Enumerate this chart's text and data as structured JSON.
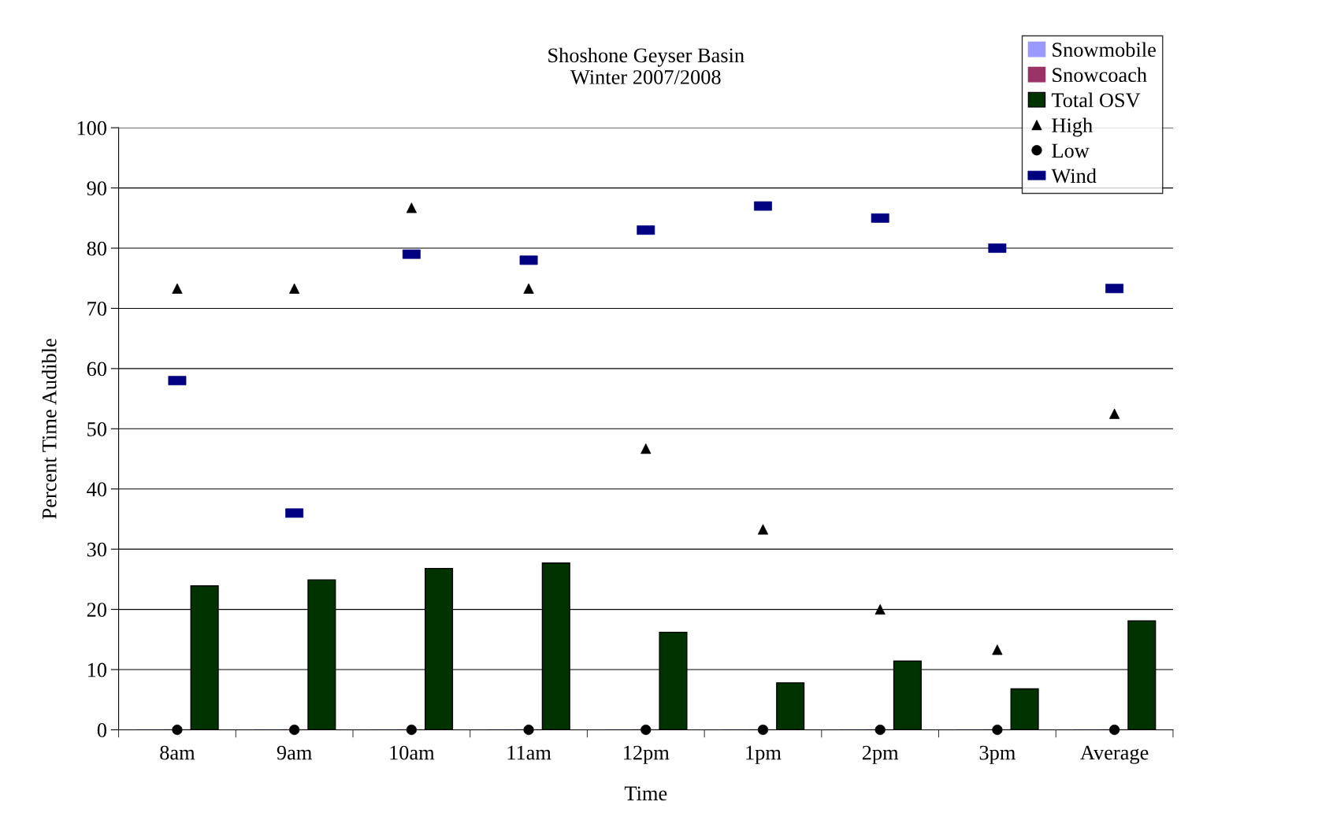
{
  "chart_data": {
    "type": "bar",
    "title": "Shoshone Geyser Basin\nWinter 2007/2008",
    "xlabel": "Time",
    "ylabel": "Percent Time Audible",
    "categories": [
      "8am",
      "9am",
      "10am",
      "11am",
      "12pm",
      "1pm",
      "2pm",
      "3pm",
      "Average"
    ],
    "series": [
      {
        "name": "Snowmobile",
        "color": "#9999ff",
        "values": [
          0,
          0,
          0,
          0,
          0,
          0,
          0,
          0,
          0
        ]
      },
      {
        "name": "Snowcoach",
        "color": "#993366",
        "values": [
          0,
          0,
          0,
          0,
          0,
          0,
          0,
          0,
          0
        ]
      },
      {
        "name": "Total OSV",
        "color": "#003300",
        "values": [
          23.9,
          24.9,
          26.8,
          27.7,
          16.2,
          7.8,
          11.4,
          6.8,
          18.1
        ]
      },
      {
        "name": "High",
        "type": "scatter",
        "marker": "triangle",
        "color": "#000000",
        "values": [
          73.3,
          73.3,
          86.7,
          73.3,
          46.7,
          33.3,
          20,
          13.3,
          52.5
        ]
      },
      {
        "name": "Low",
        "type": "scatter",
        "marker": "circle",
        "color": "#000000",
        "values": [
          0,
          0,
          0,
          0,
          0,
          0,
          0,
          0,
          0
        ]
      },
      {
        "name": "Wind",
        "type": "scatter",
        "marker": "square",
        "color": "#000080",
        "values": [
          58,
          36,
          79,
          78,
          83,
          87,
          85,
          80,
          73.3
        ]
      }
    ],
    "ylim": [
      0,
      100
    ],
    "yticks": [
      0,
      10,
      20,
      30,
      40,
      50,
      60,
      70,
      80,
      90,
      100
    ],
    "grid": "y",
    "legend": "top right"
  }
}
